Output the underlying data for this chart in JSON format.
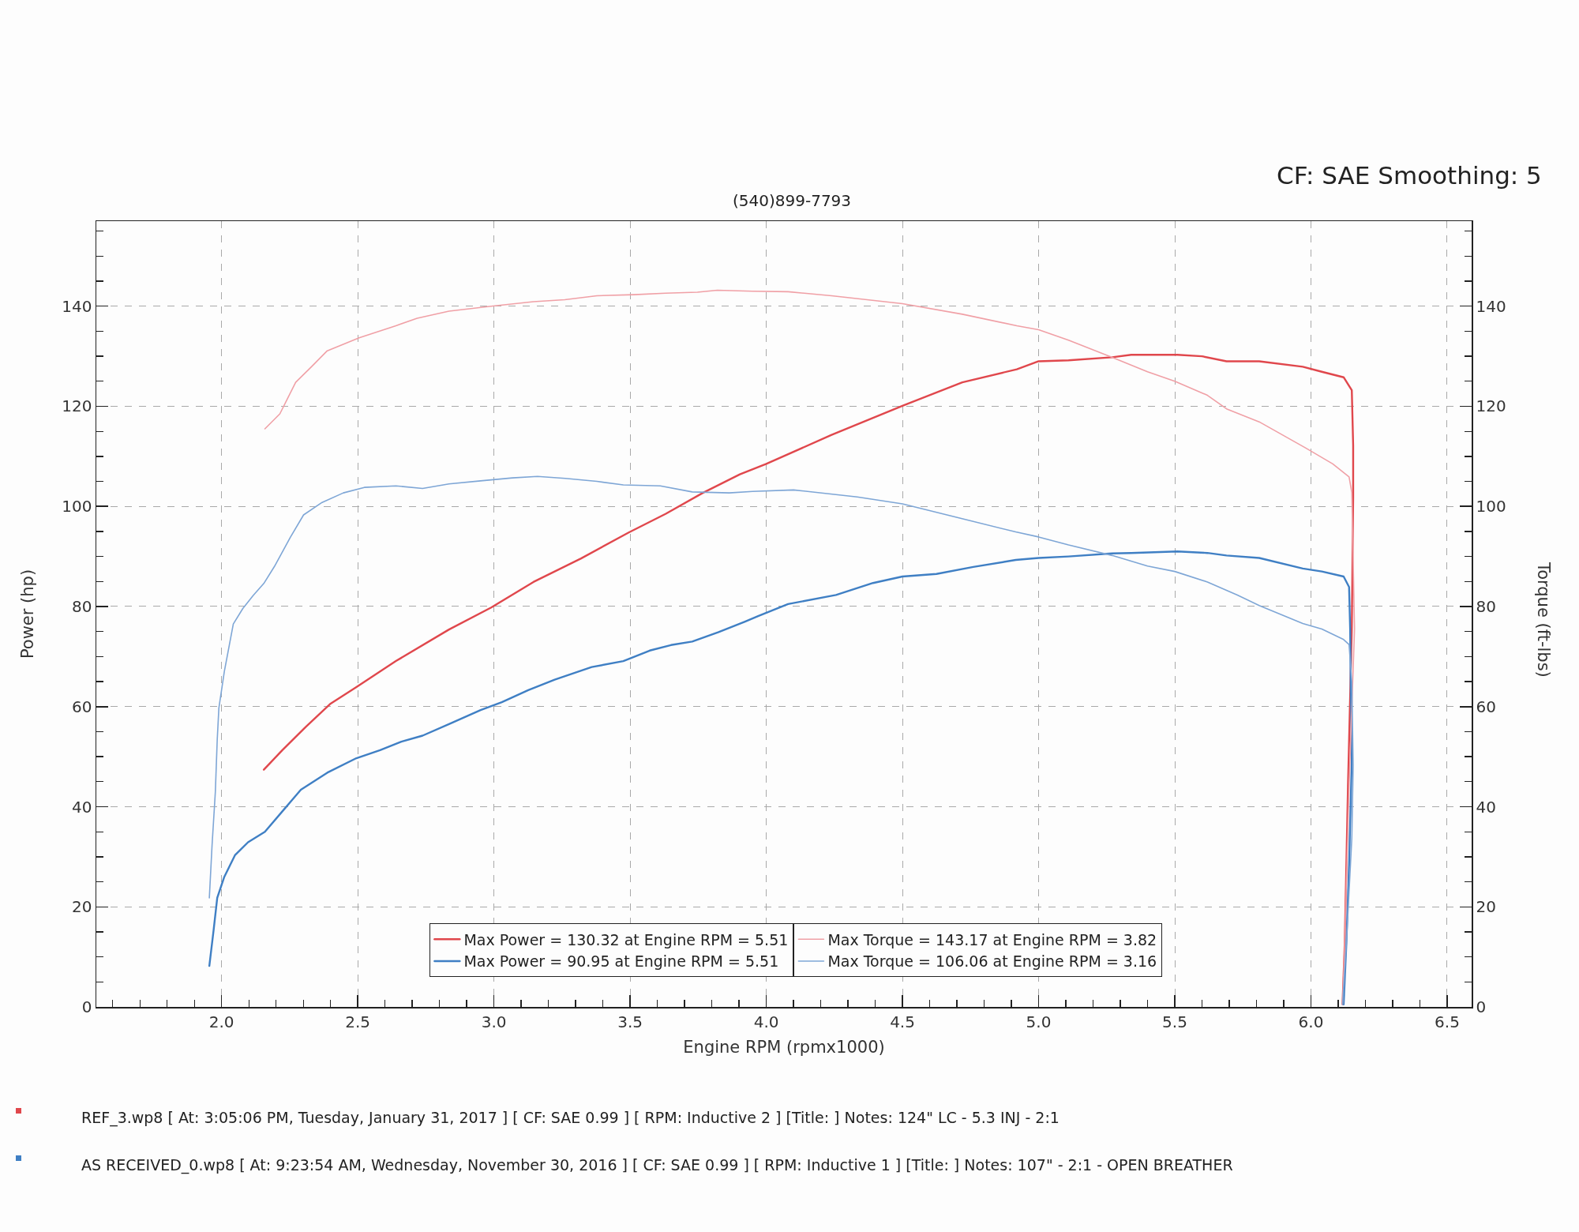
{
  "chart_data": {
    "type": "line",
    "xlabel": "Engine RPM (rpmx1000)",
    "ylabel": "Power (hp)",
    "y2label": "Torque (ft-lbs)",
    "annotations": [
      "(540)899-7793",
      "CF: SAE Smoothing: 5",
      "REF_3.wp8 [ At: 3:05:06 PM, Tuesday, January 31, 2017 ] [ CF: SAE 0.99 ] [ RPM: Inductive 2 ] [Title: ] Notes: 124\" LC - 5.3 INJ - 2:1",
      "AS RECEIVED_0.wp8 [ At: 9:23:54 AM, Wednesday, November 30, 2016 ] [ CF: SAE 0.99 ] [ RPM: Inductive 1 ] [Title: ] Notes: 107\" - 2:1 - OPEN BREATHER"
    ],
    "xlim": [
      1.54,
      6.59
    ],
    "ylim": [
      0,
      157
    ],
    "y2lim": [
      0,
      157
    ],
    "xticks": [
      {
        "value": 1.6,
        "label": null
      },
      {
        "value": 1.7,
        "label": null
      },
      {
        "value": 1.8,
        "label": null
      },
      {
        "value": 1.9,
        "label": null
      },
      {
        "value": 2,
        "label": "2.0"
      },
      {
        "value": 2.1,
        "label": null
      },
      {
        "value": 2.2,
        "label": null
      },
      {
        "value": 2.3,
        "label": null
      },
      {
        "value": 2.4,
        "label": null
      },
      2.5,
      {
        "value": 2.6,
        "label": null
      },
      {
        "value": 2.7,
        "label": null
      },
      {
        "value": 2.8,
        "label": null
      },
      {
        "value": 2.9,
        "label": null
      },
      {
        "value": 3,
        "label": "3.0"
      },
      {
        "value": 3.1,
        "label": null
      },
      {
        "value": 3.2,
        "label": null
      },
      {
        "value": 3.3,
        "label": null
      },
      {
        "value": 3.4,
        "label": null
      },
      3.5,
      {
        "value": 3.6,
        "label": null
      },
      {
        "value": 3.7,
        "label": null
      },
      {
        "value": 3.8,
        "label": null
      },
      {
        "value": 3.9,
        "label": null
      },
      {
        "value": 4,
        "label": "4.0"
      },
      {
        "value": 4.1,
        "label": null
      },
      {
        "value": 4.2,
        "label": null
      },
      {
        "value": 4.3,
        "label": null
      },
      {
        "value": 4.4,
        "label": null
      },
      4.5,
      {
        "value": 4.6,
        "label": null
      },
      {
        "value": 4.7,
        "label": null
      },
      {
        "value": 4.8,
        "label": null
      },
      {
        "value": 4.9,
        "label": null
      },
      {
        "value": 5,
        "label": "5.0"
      },
      {
        "value": 5.1,
        "label": null
      },
      {
        "value": 5.2,
        "label": null
      },
      {
        "value": 5.3,
        "label": null
      },
      {
        "value": 5.4,
        "label": null
      },
      5.5,
      {
        "value": 5.6,
        "label": null
      },
      {
        "value": 5.7,
        "label": null
      },
      {
        "value": 5.8,
        "label": null
      },
      {
        "value": 5.9,
        "label": null
      },
      {
        "value": 6,
        "label": "6.0"
      },
      {
        "value": 6.1,
        "label": null
      },
      {
        "value": 6.2,
        "label": null
      },
      {
        "value": 6.3,
        "label": null
      },
      {
        "value": 6.4,
        "label": null
      },
      6.5
    ],
    "yticks": [
      0,
      {
        "value": 5,
        "label": null
      },
      {
        "value": 10,
        "label": null
      },
      {
        "value": 15,
        "label": null
      },
      20,
      {
        "value": 25,
        "label": null
      },
      {
        "value": 30,
        "label": null
      },
      {
        "value": 35,
        "label": null
      },
      40,
      {
        "value": 45,
        "label": null
      },
      {
        "value": 50,
        "label": null
      },
      {
        "value": 55,
        "label": null
      },
      60,
      {
        "value": 65,
        "label": null
      },
      {
        "value": 70,
        "label": null
      },
      {
        "value": 75,
        "label": null
      },
      80,
      {
        "value": 85,
        "label": null
      },
      {
        "value": 90,
        "label": null
      },
      {
        "value": 95,
        "label": null
      },
      100,
      {
        "value": 105,
        "label": null
      },
      {
        "value": 110,
        "label": null
      },
      {
        "value": 115,
        "label": null
      },
      120,
      {
        "value": 125,
        "label": null
      },
      {
        "value": 130,
        "label": null
      },
      {
        "value": 135,
        "label": null
      },
      140,
      {
        "value": 145,
        "label": null
      },
      {
        "value": 150,
        "label": null
      },
      {
        "value": 155,
        "label": null
      }
    ],
    "y2ticks": [
      0,
      {
        "value": 5,
        "label": null
      },
      {
        "value": 10,
        "label": null
      },
      {
        "value": 15,
        "label": null
      },
      20,
      {
        "value": 25,
        "label": null
      },
      {
        "value": 30,
        "label": null
      },
      {
        "value": 35,
        "label": null
      },
      40,
      {
        "value": 45,
        "label": null
      },
      {
        "value": 50,
        "label": null
      },
      {
        "value": 55,
        "label": null
      },
      60,
      {
        "value": 65,
        "label": null
      },
      {
        "value": 70,
        "label": null
      },
      {
        "value": 75,
        "label": null
      },
      80,
      {
        "value": 85,
        "label": null
      },
      {
        "value": 90,
        "label": null
      },
      {
        "value": 95,
        "label": null
      },
      100,
      {
        "value": 105,
        "label": null
      },
      {
        "value": 110,
        "label": null
      },
      {
        "value": 115,
        "label": null
      },
      120,
      {
        "value": 125,
        "label": null
      },
      {
        "value": 130,
        "label": null
      },
      {
        "value": 135,
        "label": null
      },
      140,
      {
        "value": 145,
        "label": null
      },
      {
        "value": 150,
        "label": null
      },
      {
        "value": 155,
        "label": null
      }
    ],
    "grid": true,
    "legend": "bottom",
    "series": [
      {
        "name": "Max Power = 130.32 at Engine RPM = 5.51",
        "color": "#e0474c",
        "x": [
          2.155,
          2.223,
          2.31,
          2.398,
          2.495,
          2.64,
          2.835,
          2.99,
          3.145,
          3.32,
          3.495,
          3.63,
          3.767,
          3.903,
          4.0,
          4.24,
          4.5,
          4.72,
          4.92,
          5.0,
          5.11,
          5.27,
          5.34,
          5.51,
          5.6,
          5.69,
          5.81,
          5.97,
          6.04,
          6.12,
          6.15,
          6.155,
          6.155,
          6.15,
          6.136,
          6.124,
          6.116
        ],
        "values": [
          47.4,
          51.3,
          56.0,
          60.5,
          63.9,
          69.1,
          75.4,
          79.8,
          84.9,
          89.6,
          94.8,
          98.5,
          102.7,
          106.4,
          108.5,
          114.3,
          120.1,
          124.8,
          127.4,
          129.0,
          129.2,
          129.8,
          130.3,
          130.3,
          130.0,
          129.0,
          129.0,
          127.9,
          126.9,
          125.8,
          123.2,
          112.2,
          101.7,
          75.5,
          44.0,
          12.6,
          0.5
        ]
      },
      {
        "name": "Max Torque = 143.17 at Engine RPM = 3.82",
        "color": "#f0a0a6",
        "axis": "y2",
        "x": [
          2.159,
          2.214,
          2.272,
          2.33,
          2.388,
          2.505,
          2.64,
          2.718,
          2.835,
          2.99,
          3.145,
          3.26,
          3.378,
          3.514,
          3.63,
          3.747,
          3.82,
          3.95,
          4.08,
          4.24,
          4.5,
          4.72,
          4.92,
          5.0,
          5.11,
          5.27,
          5.4,
          5.5,
          5.62,
          5.69,
          5.81,
          5.98,
          6.08,
          6.14,
          6.15,
          6.16,
          6.14,
          6.124,
          6.116
        ],
        "values": [
          115.5,
          118.5,
          124.8,
          127.9,
          131.1,
          133.7,
          136.1,
          137.6,
          139.0,
          140.0,
          140.9,
          141.3,
          142.1,
          142.3,
          142.6,
          142.8,
          143.2,
          143.0,
          142.9,
          142.1,
          140.5,
          138.4,
          136.1,
          135.3,
          133.2,
          129.8,
          126.9,
          125.0,
          122.2,
          119.5,
          116.9,
          111.7,
          108.5,
          105.9,
          102.8,
          75.5,
          44.0,
          12.6,
          0.5
        ]
      },
      {
        "name": "Max Power = 90.95 at Engine RPM = 5.51",
        "color": "#3f7fc4",
        "x": [
          1.955,
          1.971,
          1.984,
          2.01,
          2.049,
          2.097,
          2.159,
          2.233,
          2.291,
          2.388,
          2.495,
          2.582,
          2.66,
          2.738,
          2.835,
          2.951,
          3.029,
          3.126,
          3.223,
          3.359,
          3.475,
          3.572,
          3.65,
          3.728,
          3.825,
          3.922,
          3.97,
          4.08,
          4.256,
          4.392,
          4.5,
          4.625,
          4.76,
          4.916,
          5.0,
          5.11,
          5.27,
          5.34,
          5.51,
          5.62,
          5.69,
          5.81,
          5.97,
          6.04,
          6.12,
          6.14,
          6.144,
          6.146,
          6.15,
          6.14,
          6.13,
          6.12
        ],
        "values": [
          8.2,
          15.5,
          21.8,
          26.0,
          30.3,
          32.9,
          35.0,
          39.7,
          43.4,
          46.8,
          49.7,
          51.3,
          53.0,
          54.2,
          56.5,
          59.3,
          60.9,
          63.3,
          65.4,
          67.9,
          69.1,
          71.2,
          72.3,
          73.0,
          74.9,
          77.0,
          78.1,
          80.5,
          82.3,
          84.7,
          86.0,
          86.5,
          87.9,
          89.3,
          89.7,
          90.0,
          90.6,
          90.7,
          91.0,
          90.7,
          90.2,
          89.7,
          87.6,
          87.0,
          86.0,
          83.9,
          75.5,
          65.0,
          49.3,
          28.3,
          12.6,
          0.5
        ]
      },
      {
        "name": "Max Torque = 106.06 at Engine RPM = 3.16",
        "color": "#7ea6d6",
        "axis": "y2",
        "x": [
          1.955,
          1.965,
          1.977,
          1.984,
          1.99,
          2.01,
          2.043,
          2.078,
          2.116,
          2.155,
          2.194,
          2.252,
          2.301,
          2.369,
          2.447,
          2.524,
          2.64,
          2.738,
          2.835,
          2.951,
          3.068,
          3.16,
          3.262,
          3.378,
          3.475,
          3.611,
          3.728,
          3.864,
          3.95,
          4.1,
          4.334,
          4.5,
          4.722,
          4.916,
          5.0,
          5.11,
          5.27,
          5.4,
          5.5,
          5.62,
          5.73,
          5.81,
          5.97,
          6.04,
          6.12,
          6.14,
          6.15,
          6.155,
          6.15,
          6.13,
          6.116
        ],
        "values": [
          21.8,
          32.3,
          42.9,
          53.4,
          59.7,
          67.0,
          76.5,
          79.6,
          82.2,
          84.6,
          88.0,
          93.8,
          98.3,
          100.8,
          102.7,
          103.8,
          104.1,
          103.6,
          104.5,
          105.1,
          105.7,
          106.0,
          105.6,
          105.0,
          104.3,
          104.1,
          102.9,
          102.7,
          103.0,
          103.3,
          101.9,
          100.5,
          97.5,
          94.9,
          93.9,
          92.3,
          90.2,
          88.1,
          87.0,
          84.9,
          82.3,
          80.2,
          76.6,
          75.5,
          73.4,
          72.4,
          65.0,
          48.2,
          33.6,
          12.6,
          0.5
        ]
      }
    ]
  }
}
